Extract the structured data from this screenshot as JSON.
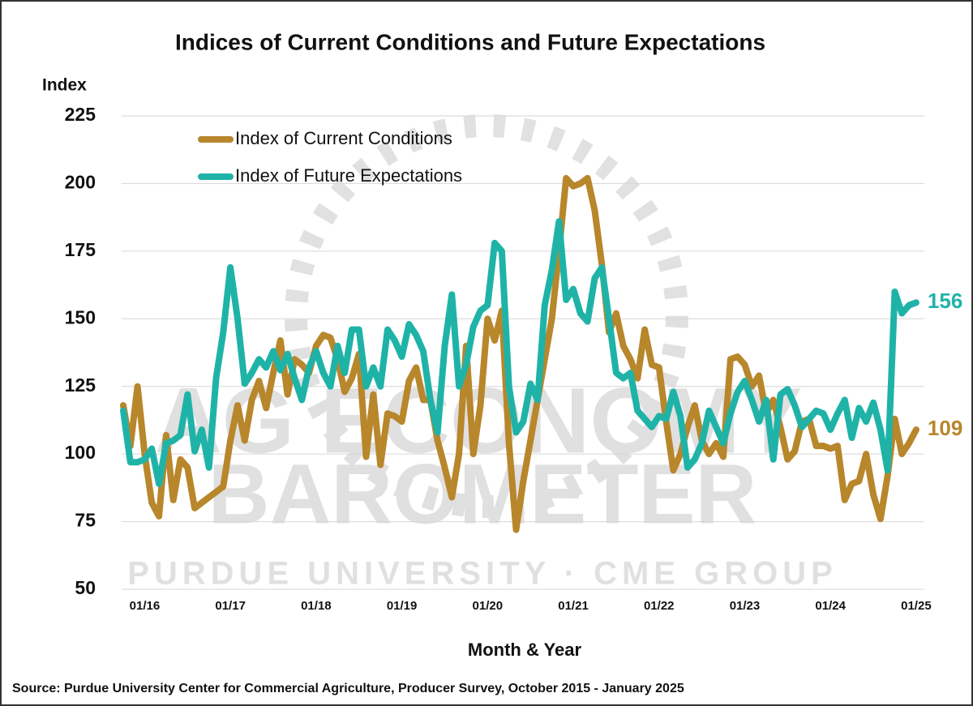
{
  "chart_data": {
    "type": "line",
    "title": "Indices of Current Conditions and Future Expectations",
    "y_label": "Index",
    "x_label": "Month & Year",
    "source": "Source: Purdue University Center for Commercial Agriculture, Producer Survey, October 2015 - January 2025",
    "watermark": [
      "AG ECONOMY",
      "BAROMETER",
      "PURDUE UNIVERSITY · CME GROUP"
    ],
    "categories": [
      null,
      null,
      null,
      "01/16",
      null,
      null,
      null,
      null,
      null,
      null,
      null,
      null,
      null,
      null,
      null,
      "01/17",
      null,
      null,
      null,
      null,
      null,
      null,
      null,
      null,
      null,
      null,
      null,
      "01/18",
      null,
      null,
      null,
      null,
      null,
      null,
      null,
      null,
      null,
      null,
      null,
      "01/19",
      null,
      null,
      null,
      null,
      null,
      null,
      null,
      null,
      null,
      null,
      null,
      "01/20",
      null,
      null,
      null,
      null,
      null,
      null,
      null,
      null,
      null,
      null,
      null,
      "01/21",
      null,
      null,
      null,
      null,
      null,
      null,
      null,
      null,
      null,
      null,
      null,
      "01/22",
      null,
      null,
      null,
      null,
      null,
      null,
      null,
      null,
      null,
      null,
      null,
      "01/23",
      null,
      null,
      null,
      null,
      null,
      null,
      null,
      null,
      null,
      null,
      null,
      "01/24",
      null,
      null,
      null,
      null,
      null,
      null,
      null,
      null,
      null,
      null,
      null,
      "01/25"
    ],
    "series": [
      {
        "name": "Index of Current Conditions",
        "color": "#b8862b",
        "values": [
          118,
          103,
          125,
          100,
          82,
          77,
          107,
          83,
          98,
          95,
          80,
          82,
          84,
          86,
          88,
          105,
          118,
          105,
          120,
          127,
          117,
          130,
          142,
          122,
          135,
          133,
          130,
          140,
          144,
          143,
          135,
          123,
          128,
          137,
          99,
          122,
          96,
          115,
          114,
          112,
          127,
          132,
          120,
          120,
          105,
          95,
          84,
          100,
          140,
          100,
          118,
          150,
          142,
          153,
          104,
          72,
          90,
          105,
          120,
          135,
          150,
          175,
          202,
          199,
          200,
          202,
          190,
          170,
          145,
          152,
          140,
          135,
          128,
          146,
          133,
          132,
          112,
          94,
          100,
          110,
          118,
          105,
          100,
          104,
          99,
          135,
          136,
          133,
          125,
          129,
          115,
          120,
          110,
          98,
          101,
          112,
          113,
          103,
          103,
          102,
          103,
          83,
          89,
          90,
          100,
          85,
          76,
          92,
          113,
          100,
          104,
          109
        ]
      },
      {
        "name": "Index of Future Expectations",
        "color": "#1fb3a8",
        "values": [
          116,
          97,
          97,
          98,
          102,
          89,
          104,
          105,
          107,
          122,
          101,
          109,
          95,
          128,
          145,
          169,
          150,
          126,
          130,
          135,
          132,
          138,
          131,
          137,
          128,
          120,
          132,
          138,
          130,
          125,
          140,
          130,
          146,
          146,
          125,
          132,
          125,
          146,
          142,
          136,
          148,
          144,
          138,
          120,
          108,
          140,
          159,
          125,
          133,
          147,
          153,
          155,
          178,
          175,
          125,
          108,
          112,
          126,
          120,
          155,
          168,
          186,
          157,
          161,
          152,
          149,
          165,
          169,
          150,
          130,
          128,
          130,
          116,
          113,
          110,
          114,
          113,
          123,
          114,
          95,
          98,
          104,
          116,
          110,
          104,
          115,
          123,
          127,
          120,
          112,
          120,
          98,
          122,
          124,
          118,
          110,
          113,
          116,
          115,
          109,
          115,
          120,
          106,
          117,
          112,
          119,
          109,
          94,
          160,
          152,
          155,
          156
        ]
      }
    ],
    "ylim": [
      50,
      225
    ],
    "yticks": [
      50,
      75,
      100,
      125,
      150,
      175,
      200,
      225
    ],
    "grid": true,
    "legend": "top-left"
  }
}
